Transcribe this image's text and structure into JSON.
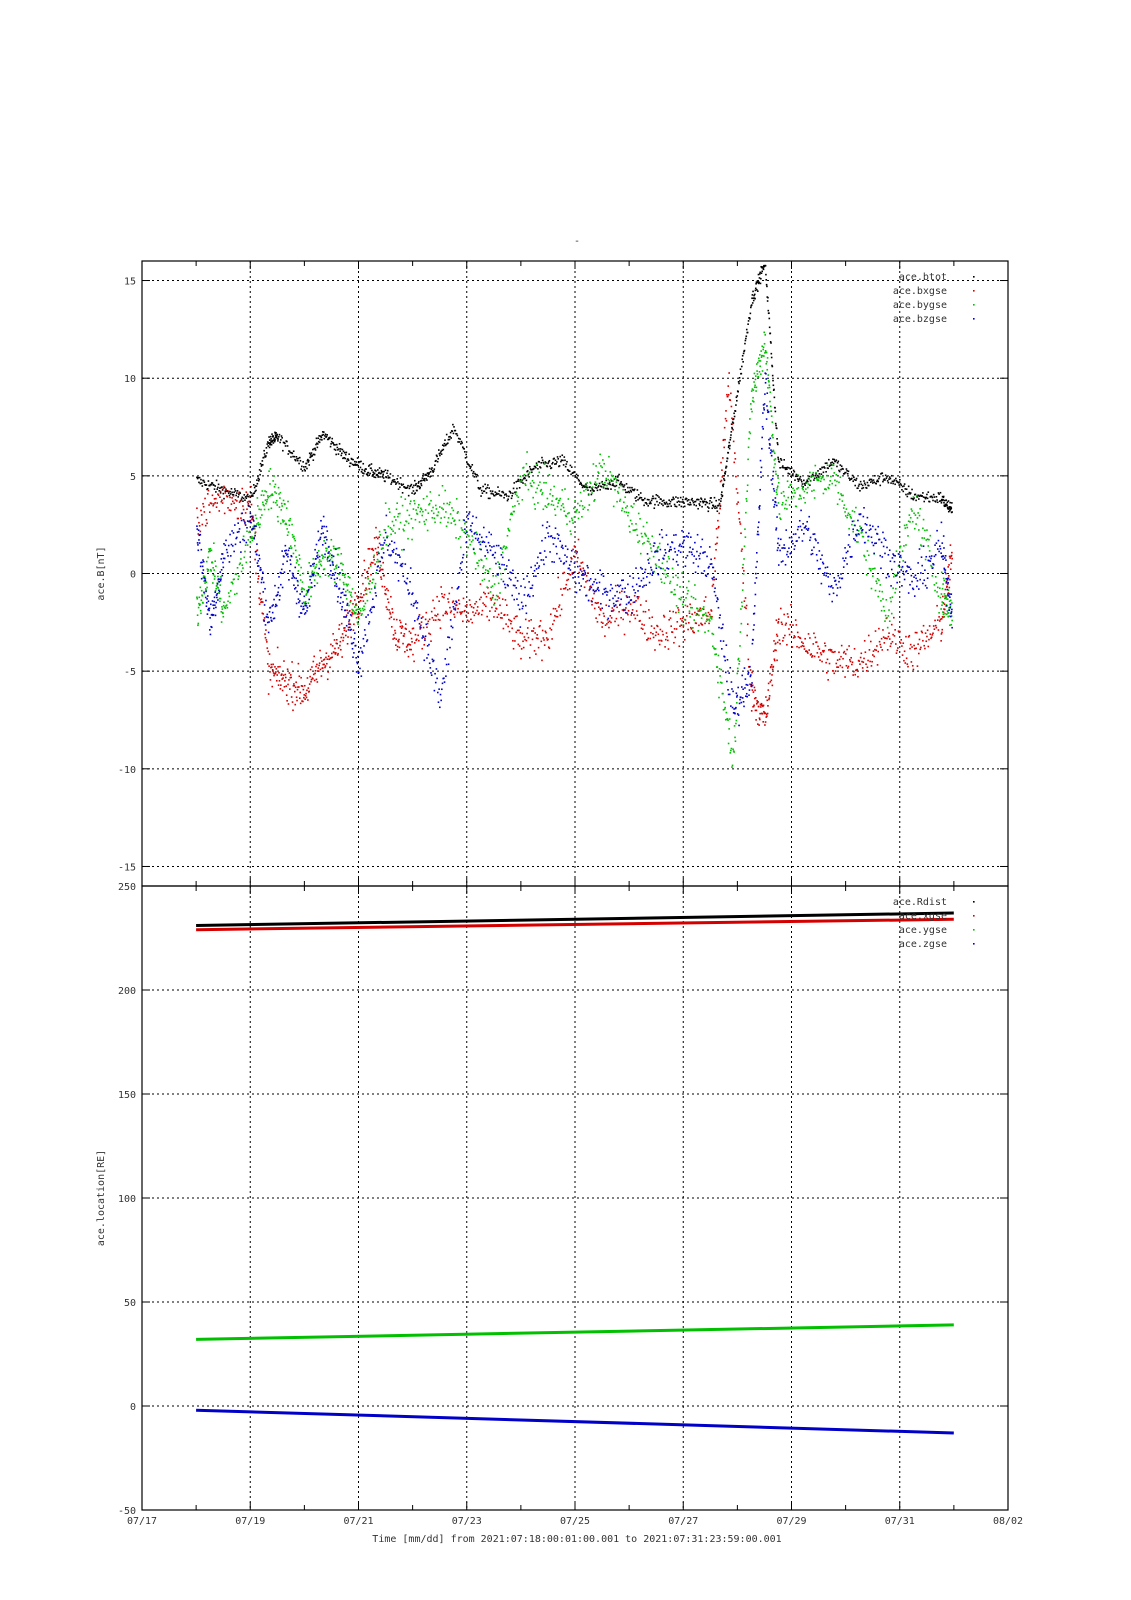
{
  "page_title": "-",
  "xlabel": "Time [mm/dd]  from 2021:07:18:00:01:00.001  to  2021:07:31:23:59:00.001",
  "chart_data": [
    {
      "type": "scatter",
      "ylabel": "ace.B[nT]",
      "ylim": [
        -16,
        16
      ],
      "yticks": [
        -15,
        -10,
        -5,
        0,
        5,
        10,
        15
      ],
      "xticks": [
        "07/17",
        "07/19",
        "07/21",
        "07/23",
        "07/25",
        "07/27",
        "07/29",
        "07/31",
        "08/02"
      ],
      "x_range_days": [
        "2021-07-17",
        "2021-08-02"
      ],
      "grid": true,
      "legend_position": "top-right",
      "series": [
        {
          "name": "ace.btot",
          "color": "#000000",
          "x": [
            "07/18 00:00",
            "07/18 12:00",
            "07/19 00:00",
            "07/19 08:00",
            "07/19 12:00",
            "07/20 00:00",
            "07/20 08:00",
            "07/20 18:00",
            "07/21 04:00",
            "07/21 12:00",
            "07/22 00:00",
            "07/22 08:00",
            "07/22 18:00",
            "07/23 06:00",
            "07/23 18:00",
            "07/24 06:00",
            "07/24 18:00",
            "07/25 06:00",
            "07/25 18:00",
            "07/26 06:00",
            "07/26 18:00",
            "07/27 06:00",
            "07/27 16:00",
            "07/27 22:00",
            "07/28 06:00",
            "07/28 12:00",
            "07/28 18:00",
            "07/29 06:00",
            "07/29 18:00",
            "07/30 06:00",
            "07/30 18:00",
            "07/31 06:00",
            "07/31 18:00",
            "07/31 23:00"
          ],
          "values": [
            4.8,
            4.3,
            3.8,
            6.8,
            7.0,
            5.5,
            7.2,
            6.0,
            5.3,
            5.0,
            4.3,
            5.3,
            7.5,
            4.3,
            4.0,
            5.5,
            5.8,
            4.2,
            4.8,
            3.8,
            3.7,
            3.7,
            3.5,
            8.0,
            14.0,
            16.0,
            5.7,
            4.7,
            5.8,
            4.5,
            5.0,
            4.0,
            3.9,
            3.2
          ]
        },
        {
          "name": "ace.bxgse",
          "color": "#d40000",
          "x": [
            "07/18 00:00",
            "07/18 12:00",
            "07/19 00:00",
            "07/19 08:00",
            "07/19 16:00",
            "07/20 00:00",
            "07/20 08:00",
            "07/20 16:00",
            "07/21 00:00",
            "07/21 08:00",
            "07/21 16:00",
            "07/22 00:00",
            "07/22 12:00",
            "07/23 00:00",
            "07/23 12:00",
            "07/24 00:00",
            "07/24 12:00",
            "07/25 00:00",
            "07/25 12:00",
            "07/26 00:00",
            "07/26 12:00",
            "07/27 00:00",
            "07/27 12:00",
            "07/27 20:00",
            "07/28 06:00",
            "07/28 12:00",
            "07/28 18:00",
            "07/29 06:00",
            "07/29 18:00",
            "07/30 06:00",
            "07/30 18:00",
            "07/31 06:00",
            "07/31 18:00",
            "07/31 23:00"
          ],
          "values": [
            3.0,
            4.0,
            3.5,
            -5.0,
            -5.5,
            -6.0,
            -4.5,
            -3.5,
            -1.0,
            1.5,
            -3.0,
            -3.5,
            -1.5,
            -2.0,
            -1.5,
            -3.5,
            -3.0,
            1.0,
            -2.5,
            -1.5,
            -3.0,
            -2.5,
            -2.0,
            10.0,
            -6.0,
            -7.5,
            -2.5,
            -3.5,
            -4.5,
            -4.5,
            -3.0,
            -4.0,
            -2.5,
            1.0
          ]
        },
        {
          "name": "ace.bygse",
          "color": "#00c000",
          "x": [
            "07/18 00:00",
            "07/18 06:00",
            "07/18 12:00",
            "07/19 00:00",
            "07/19 08:00",
            "07/19 16:00",
            "07/20 00:00",
            "07/20 08:00",
            "07/20 16:00",
            "07/21 00:00",
            "07/21 12:00",
            "07/22 00:00",
            "07/22 12:00",
            "07/23 00:00",
            "07/23 12:00",
            "07/24 00:00",
            "07/24 12:00",
            "07/25 00:00",
            "07/25 12:00",
            "07/26 00:00",
            "07/26 12:00",
            "07/27 00:00",
            "07/27 12:00",
            "07/27 22:00",
            "07/28 06:00",
            "07/28 12:00",
            "07/28 18:00",
            "07/29 06:00",
            "07/29 18:00",
            "07/30 06:00",
            "07/30 18:00",
            "07/31 06:00",
            "07/31 18:00",
            "07/31 23:00"
          ],
          "values": [
            -2.0,
            1.0,
            -2.0,
            2.0,
            4.5,
            3.0,
            -1.0,
            1.0,
            0.5,
            -2.5,
            2.5,
            3.0,
            3.5,
            2.0,
            -1.0,
            5.0,
            4.0,
            3.0,
            5.5,
            3.0,
            1.0,
            -1.5,
            -2.5,
            -9.5,
            9.0,
            12.0,
            3.5,
            4.5,
            5.0,
            2.0,
            -2.0,
            3.5,
            -1.0,
            -2.0
          ]
        },
        {
          "name": "ace.bzgse",
          "color": "#0000c8",
          "x": [
            "07/18 00:00",
            "07/18 06:00",
            "07/18 12:00",
            "07/19 00:00",
            "07/19 08:00",
            "07/19 16:00",
            "07/20 00:00",
            "07/20 08:00",
            "07/20 16:00",
            "07/21 00:00",
            "07/21 12:00",
            "07/22 00:00",
            "07/22 12:00",
            "07/23 00:00",
            "07/23 12:00",
            "07/24 00:00",
            "07/24 12:00",
            "07/25 00:00",
            "07/25 12:00",
            "07/26 00:00",
            "07/26 12:00",
            "07/27 00:00",
            "07/27 12:00",
            "07/27 22:00",
            "07/28 06:00",
            "07/28 12:00",
            "07/28 18:00",
            "07/29 06:00",
            "07/29 18:00",
            "07/30 06:00",
            "07/30 18:00",
            "07/31 06:00",
            "07/31 18:00",
            "07/31 23:00"
          ],
          "values": [
            2.5,
            -2.5,
            1.0,
            3.0,
            -2.5,
            1.0,
            -2.0,
            2.5,
            -1.0,
            -4.5,
            2.0,
            -1.0,
            -6.5,
            2.5,
            1.0,
            -1.5,
            2.0,
            0.0,
            -1.0,
            -1.0,
            1.0,
            1.5,
            0.5,
            -7.0,
            -5.0,
            10.0,
            1.0,
            2.5,
            -1.0,
            3.0,
            1.0,
            -0.5,
            1.5,
            -2.0
          ]
        }
      ]
    },
    {
      "type": "line",
      "ylabel": "ace.location[RE]",
      "ylim": [
        -50,
        250
      ],
      "yticks": [
        -50,
        0,
        50,
        100,
        150,
        200,
        250
      ],
      "xticks": [
        "07/17",
        "07/19",
        "07/21",
        "07/23",
        "07/25",
        "07/27",
        "07/29",
        "07/31",
        "08/02"
      ],
      "x_range_days": [
        "2021-07-17",
        "2021-08-02"
      ],
      "grid": true,
      "legend_position": "top-right",
      "series": [
        {
          "name": "ace.Rdist",
          "color": "#000000",
          "x": [
            "07/18 00:00",
            "07/31 23:59"
          ],
          "values": [
            231,
            237
          ]
        },
        {
          "name": "ace.xgse",
          "color": "#d40000",
          "x": [
            "07/18 00:00",
            "07/31 23:59"
          ],
          "values": [
            229,
            234
          ]
        },
        {
          "name": "ace.ygse",
          "color": "#00c000",
          "x": [
            "07/18 00:00",
            "07/31 23:59"
          ],
          "values": [
            32,
            39
          ]
        },
        {
          "name": "ace.zgse",
          "color": "#0000c8",
          "x": [
            "07/18 00:00",
            "07/31 23:59"
          ],
          "values": [
            -2,
            -13
          ]
        }
      ]
    }
  ]
}
